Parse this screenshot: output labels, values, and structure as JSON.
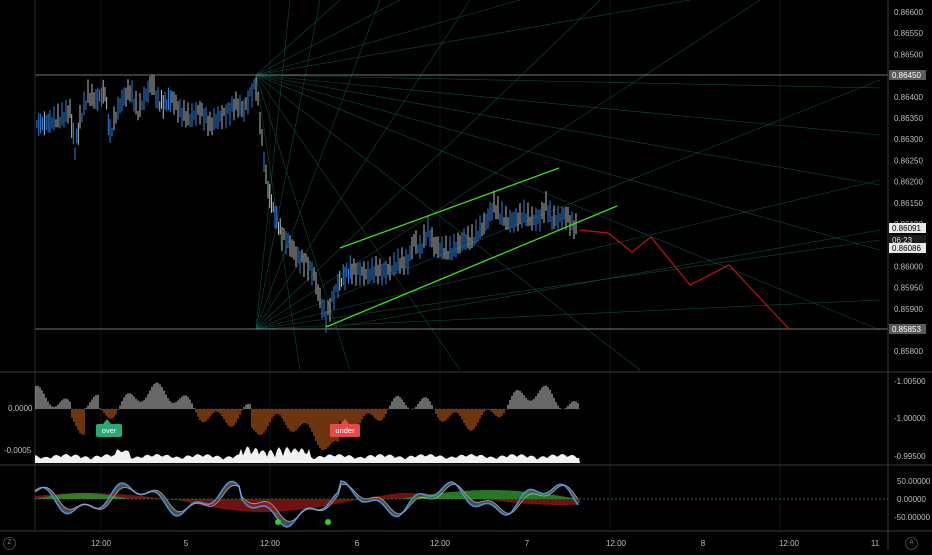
{
  "price_axis": {
    "ticks": [
      "0.86600",
      "0.86550",
      "0.86500",
      "0.86450",
      "0.86400",
      "0.86350",
      "0.86300",
      "0.86250",
      "0.86200",
      "0.86150",
      "0.86100",
      "0.86050",
      "0.86000",
      "0.85950",
      "0.85900",
      "0.85850",
      "0.85800"
    ],
    "badges": [
      {
        "text": "0.86450",
        "style": "gray"
      },
      {
        "text": "0.86091",
        "style": "white"
      },
      {
        "text": "06:23",
        "style": "dark"
      },
      {
        "text": "0.86086",
        "style": "white"
      },
      {
        "text": "0.85853",
        "style": "gray"
      }
    ]
  },
  "osc_axis": {
    "right_ticks": [
      "-1.00500",
      "-1.00000",
      "-0.99500"
    ],
    "left_ticks": [
      "0.0000",
      "-0.0005"
    ],
    "labels": {
      "over": "over",
      "under": "under"
    }
  },
  "bottom_axis": {
    "right_ticks": [
      "50.00000",
      "0.00000",
      "-50.00000"
    ]
  },
  "time_axis": {
    "labels": [
      "12:00",
      "5",
      "12:00",
      "6",
      "12:00",
      "7",
      "12:00",
      "8",
      "12:00",
      "11"
    ]
  },
  "corner_buttons": {
    "left": "Z",
    "right": "A"
  },
  "colors": {
    "background": "#000000",
    "candle_up": "#2f7fd8",
    "candle_down": "#b8b8b8",
    "channel": "#39e01a",
    "projection": "#c0140a",
    "fan": "#0f5a4a",
    "hist_pos": "#cfcfcf",
    "hist_neg": "#d9681e",
    "over_tag": "#2aa876",
    "under_tag": "#e44a4a",
    "osc_blue": "#4a8fd6",
    "osc_green": "#2e8b2e",
    "osc_red": "#8b1616",
    "osc_gray": "#8a8a8a"
  }
}
